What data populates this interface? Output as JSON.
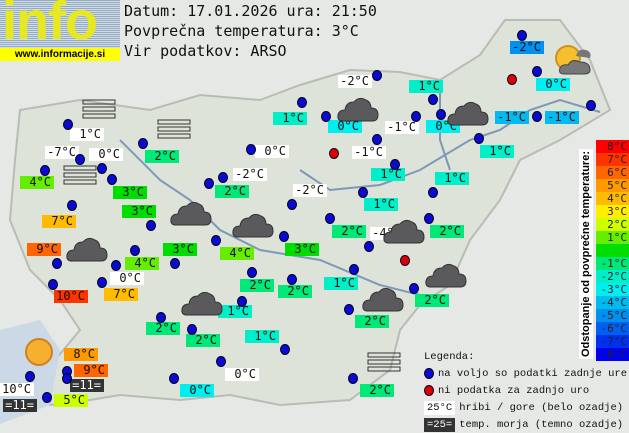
{
  "logo": {
    "text": "info",
    "url": "www.informacije.si"
  },
  "header": {
    "date_line": "Datum: 17.01.2026 ura: 21:50",
    "avg_line": "Povprečna temperatura: 3°C",
    "source_line": "Vir podatkov: ARSO"
  },
  "average_temperature": 3,
  "colors": {
    "station": "#0a0ad0",
    "no_data": "#dd0000",
    "hill_bg": "#ffffff",
    "sea_bg": "#333333"
  },
  "scale": {
    "title": "Odstopanje od povprečne temperature:",
    "steps": [
      {
        "label": "8°C",
        "color": "#ff0000"
      },
      {
        "label": "7°C",
        "color": "#ff3300"
      },
      {
        "label": "6°C",
        "color": "#ff6600"
      },
      {
        "label": "5°C",
        "color": "#ff9900"
      },
      {
        "label": "4°C",
        "color": "#ffbb00"
      },
      {
        "label": "3°C",
        "color": "#ffee00"
      },
      {
        "label": "2°C",
        "color": "#ccff00"
      },
      {
        "label": "1°C",
        "color": "#66ee00"
      },
      {
        "label": "",
        "color": "#00dd00"
      },
      {
        "label": "-1°C",
        "color": "#00e878"
      },
      {
        "label": "-2°C",
        "color": "#00eec8"
      },
      {
        "label": "-3°C",
        "color": "#00eeee"
      },
      {
        "label": "-4°C",
        "color": "#00bbf0"
      },
      {
        "label": "-5°C",
        "color": "#0090f0"
      },
      {
        "label": "-6°C",
        "color": "#0060f0"
      },
      {
        "label": "-7°C",
        "color": "#0030f0"
      },
      {
        "label": "-8°C",
        "color": "#0000f0"
      }
    ]
  },
  "legend": {
    "title": "Legenda:",
    "station": "na voljo so podatki zadnje ure",
    "no_data": "ni podatka za zadnjo uro",
    "hill_sample": "25°C",
    "hill": "hribi / gore (belo ozadje)",
    "sea_sample": "=25=",
    "sea": "temp. morja (temno ozadje)"
  },
  "labels": [
    {
      "t": "-2°C",
      "v": -2
    },
    {
      "t": "-2°C",
      "v": -2,
      "k": "hill"
    },
    {
      "t": "1°C",
      "v": 1
    },
    {
      "t": "0°C",
      "v": 0
    },
    {
      "t": "1°C",
      "v": 1
    },
    {
      "t": "0°C",
      "v": 0
    },
    {
      "t": "-1°C",
      "v": -1,
      "k": "hill"
    },
    {
      "t": "0°C",
      "v": 0
    },
    {
      "t": "-1°C",
      "v": -1
    },
    {
      "t": "-1°C",
      "v": -1
    },
    {
      "t": "1°C",
      "v": 1,
      "k": "hill"
    },
    {
      "t": "-7°C",
      "v": -7,
      "k": "hill"
    },
    {
      "t": "0°C",
      "v": 0,
      "k": "hill"
    },
    {
      "t": "2°C",
      "v": 2
    },
    {
      "t": "0°C",
      "v": 0,
      "k": "hill"
    },
    {
      "t": "-1°C",
      "v": -1,
      "k": "hill"
    },
    {
      "t": "1°C",
      "v": 1
    },
    {
      "t": "4°C",
      "v": 4
    },
    {
      "t": "3°C",
      "v": 3
    },
    {
      "t": "2°C",
      "v": 2
    },
    {
      "t": "-2°C",
      "v": -2,
      "k": "hill"
    },
    {
      "t": "1°C",
      "v": 1
    },
    {
      "t": "1°C",
      "v": 1
    },
    {
      "t": "-2°C",
      "v": -2,
      "k": "hill"
    },
    {
      "t": "1°C",
      "v": 1
    },
    {
      "t": "3°C",
      "v": 3
    },
    {
      "t": "7°C",
      "v": 7
    },
    {
      "t": "2°C",
      "v": 2
    },
    {
      "t": "-4°C",
      "v": -4,
      "k": "hill"
    },
    {
      "t": "2°C",
      "v": 2
    },
    {
      "t": "9°C",
      "v": 9
    },
    {
      "t": "3°C",
      "v": 3
    },
    {
      "t": "4°C",
      "v": 4
    },
    {
      "t": "3°C",
      "v": 3
    },
    {
      "t": "4°C",
      "v": 4
    },
    {
      "t": "0°C",
      "v": 0,
      "k": "hill"
    },
    {
      "t": "10°C",
      "v": 10
    },
    {
      "t": "7°C",
      "v": 7
    },
    {
      "t": "2°C",
      "v": 2
    },
    {
      "t": "2°C",
      "v": 2
    },
    {
      "t": "1°C",
      "v": 1
    },
    {
      "t": "2°C",
      "v": 2
    },
    {
      "t": "1°C",
      "v": 1
    },
    {
      "t": "2°C",
      "v": 2
    },
    {
      "t": "2°C",
      "v": 2
    },
    {
      "t": "2°C",
      "v": 2
    },
    {
      "t": "1°C",
      "v": 1
    },
    {
      "t": "8°C",
      "v": 8
    },
    {
      "t": "9°C",
      "v": 9
    },
    {
      "t": "=11=",
      "v": 11,
      "k": "sea"
    },
    {
      "t": "0°C",
      "v": 0,
      "k": "hill"
    },
    {
      "t": "10°C",
      "v": 10,
      "k": "hill"
    },
    {
      "t": "0°C",
      "v": 0
    },
    {
      "t": "=11=",
      "v": 11,
      "k": "sea"
    },
    {
      "t": "5°C",
      "v": 5
    },
    {
      "t": "2°C",
      "v": 2
    }
  ],
  "icons": {
    "cloud": "cloud-icon",
    "sun": "sun-icon",
    "partly_cloudy": "partly-cloudy-icon",
    "fog": "fog-icon"
  }
}
